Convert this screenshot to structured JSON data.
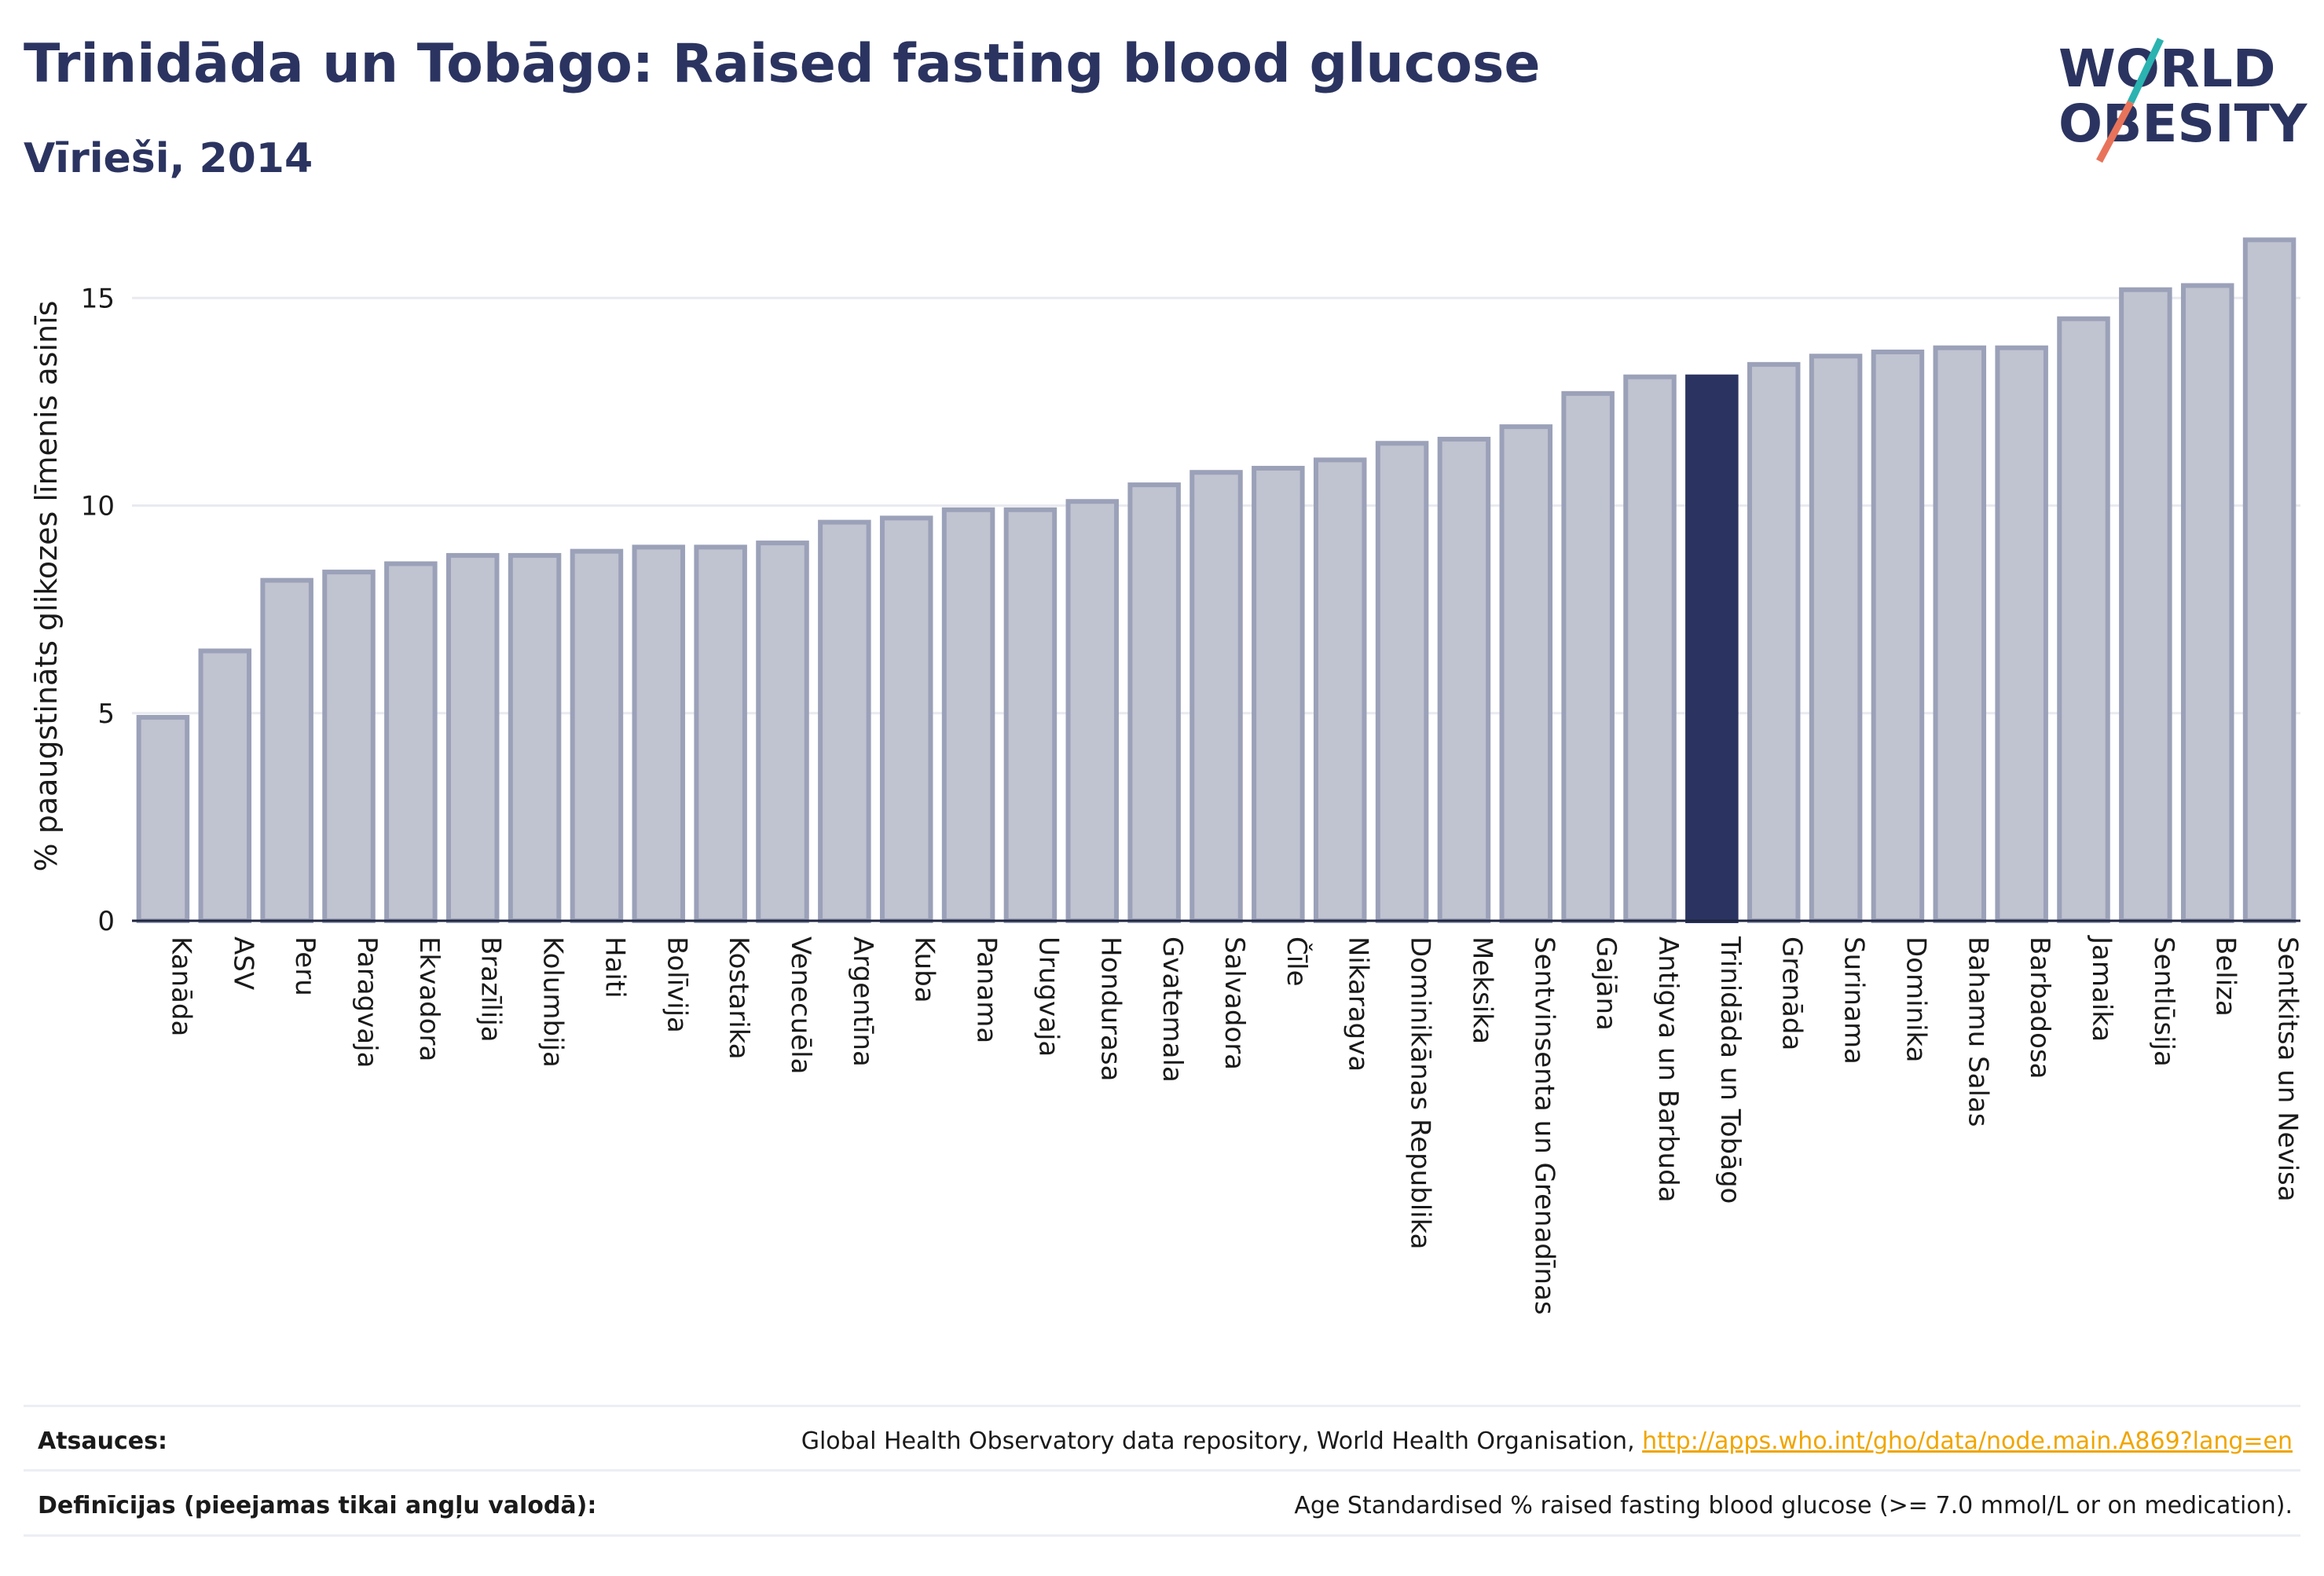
{
  "header": {
    "title": "Trinidāda un Tobāgo: Raised fasting blood glucose",
    "subtitle": "Vīrieši, 2014"
  },
  "logo": {
    "line1": "WORLD",
    "line2": "OBESITY",
    "colors": {
      "text": "#2b3460",
      "slash_teal": "#2ab3b0",
      "slash_coral": "#e8735a"
    }
  },
  "colors": {
    "bar_default": "#c0c3d0",
    "bar_border": "#9ba1b8",
    "bar_highlight": "#2b3460",
    "grid": "#e9eaf0",
    "axis": "#1f2640"
  },
  "chart_data": {
    "type": "bar",
    "title": "Trinidāda un Tobāgo: Raised fasting blood glucose",
    "subtitle": "Vīrieši, 2014",
    "xlabel": "",
    "ylabel": "% paaugstināts glikozes līmenis asinīs",
    "ylim": [
      0,
      16.5
    ],
    "yticks": [
      0,
      5,
      10,
      15
    ],
    "grid": true,
    "highlight": "Trinidāda un Tobāgo",
    "categories": [
      "Kanāda",
      "ASV",
      "Peru",
      "Paragvaja",
      "Ekvadora",
      "Brazīlija",
      "Kolumbija",
      "Haiti",
      "Bolīvija",
      "Kostarika",
      "Venecuēla",
      "Argentīna",
      "Kuba",
      "Panama",
      "Urugvaja",
      "Hondurasa",
      "Gvatemala",
      "Salvadora",
      "Čīle",
      "Nikaragva",
      "Dominikānas Republika",
      "Meksika",
      "Sentvinsenta un Grenadīnas",
      "Gajāna",
      "Antigva un Barbuda",
      "Trinidāda un Tobāgo",
      "Grenāda",
      "Surinama",
      "Dominika",
      "Bahamu Salas",
      "Barbadosa",
      "Jamaika",
      "Sentlūsija",
      "Beliza",
      "Sentkitsa un Nevisa"
    ],
    "values": [
      4.9,
      6.5,
      8.2,
      8.4,
      8.6,
      8.8,
      8.8,
      8.9,
      9.0,
      9.0,
      9.1,
      9.6,
      9.7,
      9.9,
      9.9,
      10.1,
      10.5,
      10.8,
      10.9,
      11.1,
      11.5,
      11.6,
      11.9,
      12.7,
      13.1,
      13.1,
      13.4,
      13.6,
      13.7,
      13.8,
      13.8,
      14.5,
      15.2,
      15.3,
      16.4
    ]
  },
  "footer": {
    "sources_label": "Atsauces:",
    "sources_text": "Global Health Observatory data repository, World Health Organisation, ",
    "sources_link": "http://apps.who.int/gho/data/node.main.A869?lang=en",
    "definitions_label": "Definīcijas (pieejamas tikai angļu valodā):",
    "definitions_text": "Age Standardised % raised fasting blood glucose (>= 7.0 mmol/L or on medication)."
  }
}
